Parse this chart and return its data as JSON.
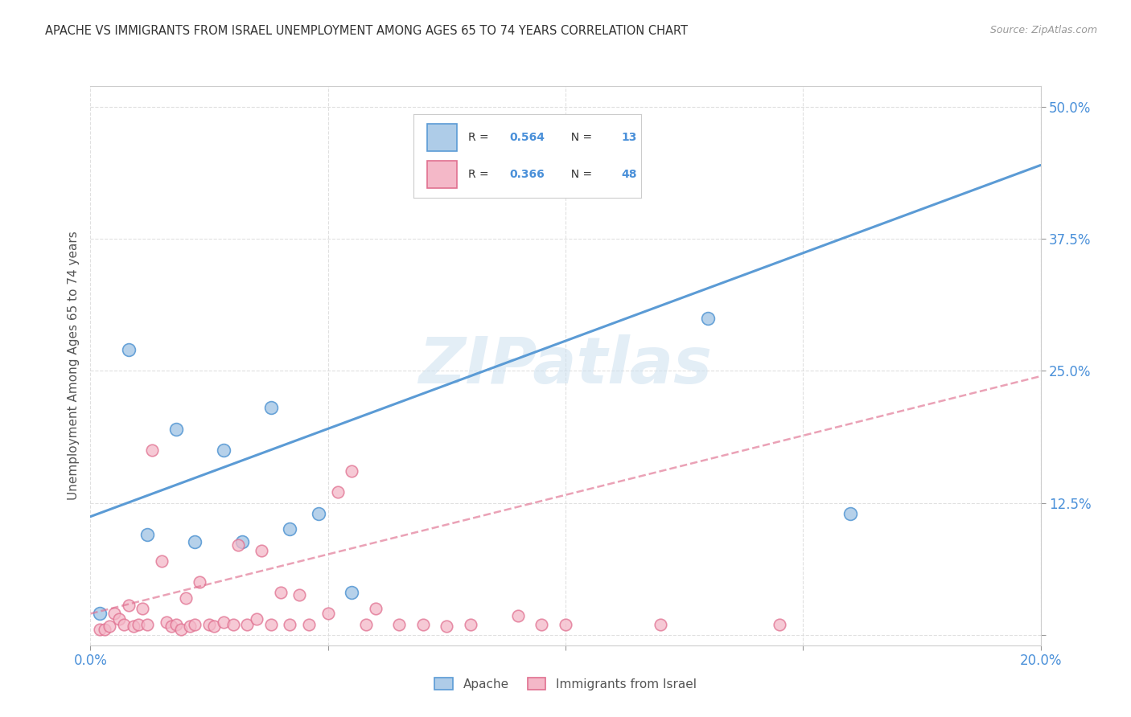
{
  "title": "APACHE VS IMMIGRANTS FROM ISRAEL UNEMPLOYMENT AMONG AGES 65 TO 74 YEARS CORRELATION CHART",
  "source": "Source: ZipAtlas.com",
  "ylabel": "Unemployment Among Ages 65 to 74 years",
  "xlim": [
    0.0,
    0.2
  ],
  "ylim": [
    -0.01,
    0.52
  ],
  "xticks": [
    0.0,
    0.05,
    0.1,
    0.15,
    0.2
  ],
  "yticks": [
    0.0,
    0.125,
    0.25,
    0.375,
    0.5
  ],
  "apache_R": 0.564,
  "apache_N": 13,
  "israel_R": 0.366,
  "israel_N": 48,
  "apache_color": "#aecce8",
  "apache_edge_color": "#5b9bd5",
  "apache_line_color": "#5b9bd5",
  "israel_color": "#f4b8c8",
  "israel_edge_color": "#e07090",
  "israel_line_color": "#e07090",
  "watermark_color": "#cce0f0",
  "apache_scatter_x": [
    0.002,
    0.008,
    0.012,
    0.018,
    0.022,
    0.028,
    0.032,
    0.038,
    0.042,
    0.048,
    0.055,
    0.13,
    0.16
  ],
  "apache_scatter_y": [
    0.02,
    0.27,
    0.095,
    0.195,
    0.088,
    0.175,
    0.088,
    0.215,
    0.1,
    0.115,
    0.04,
    0.3,
    0.115
  ],
  "israel_scatter_x": [
    0.002,
    0.003,
    0.004,
    0.005,
    0.006,
    0.007,
    0.008,
    0.009,
    0.01,
    0.011,
    0.012,
    0.013,
    0.015,
    0.016,
    0.017,
    0.018,
    0.019,
    0.02,
    0.021,
    0.022,
    0.023,
    0.025,
    0.026,
    0.028,
    0.03,
    0.031,
    0.033,
    0.035,
    0.036,
    0.038,
    0.04,
    0.042,
    0.044,
    0.046,
    0.05,
    0.052,
    0.055,
    0.058,
    0.06,
    0.065,
    0.07,
    0.075,
    0.08,
    0.09,
    0.095,
    0.1,
    0.12,
    0.145
  ],
  "israel_scatter_y": [
    0.005,
    0.005,
    0.008,
    0.02,
    0.015,
    0.01,
    0.028,
    0.008,
    0.01,
    0.025,
    0.01,
    0.175,
    0.07,
    0.012,
    0.008,
    0.01,
    0.005,
    0.035,
    0.008,
    0.01,
    0.05,
    0.01,
    0.008,
    0.012,
    0.01,
    0.085,
    0.01,
    0.015,
    0.08,
    0.01,
    0.04,
    0.01,
    0.038,
    0.01,
    0.02,
    0.135,
    0.155,
    0.01,
    0.025,
    0.01,
    0.01,
    0.008,
    0.01,
    0.018,
    0.01,
    0.01,
    0.01,
    0.01
  ],
  "apache_line_x": [
    0.0,
    0.2
  ],
  "apache_line_y": [
    0.112,
    0.445
  ],
  "israel_line_x": [
    0.0,
    0.2
  ],
  "israel_line_y": [
    0.02,
    0.245
  ]
}
